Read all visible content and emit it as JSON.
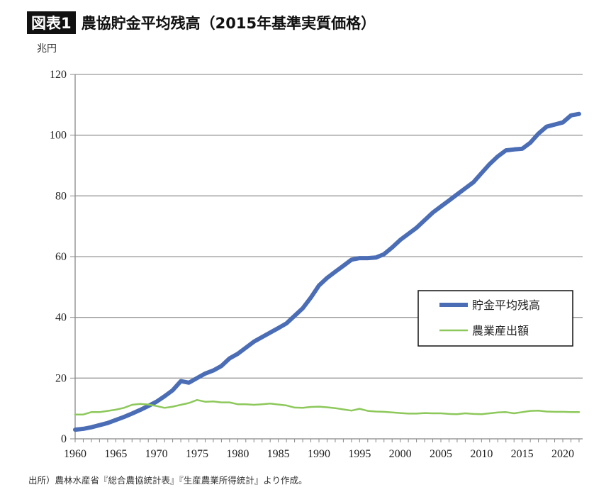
{
  "header": {
    "tag": "図表1",
    "title": "農協貯金平均残高（2015年基準実質価格）"
  },
  "source": "出所）農林水産省『総合農協統計表』『生産農業所得統計』より作成。",
  "chart_data": {
    "type": "line",
    "title": "農協貯金平均残高（2015年基準実質価格）",
    "ylabel": "兆円",
    "xlabel": "",
    "ylim": [
      0,
      120
    ],
    "yticks": [
      0,
      20,
      40,
      60,
      80,
      100,
      120
    ],
    "xlim": [
      1960,
      2022
    ],
    "xticks": [
      1960,
      1965,
      1970,
      1975,
      1980,
      1985,
      1990,
      1995,
      2000,
      2005,
      2010,
      2015,
      2020
    ],
    "grid": true,
    "legend": "right",
    "x_start": 1960,
    "series": [
      {
        "name": "貯金平均残高",
        "color": "#4a6db5",
        "values": [
          3,
          3.3,
          3.8,
          4.5,
          5.2,
          6.2,
          7.2,
          8.3,
          9.5,
          10.8,
          12.2,
          14,
          16,
          19,
          18.5,
          20,
          21.5,
          22.5,
          24,
          26.5,
          28,
          30,
          32,
          33.5,
          35,
          36.5,
          38,
          40.5,
          43,
          46.5,
          50.5,
          53,
          55,
          57,
          59,
          59.5,
          59.5,
          59.7,
          60.8,
          63,
          65.5,
          67.5,
          69.5,
          72,
          74.5,
          76.5,
          78.5,
          80.5,
          82.5,
          84.5,
          87.5,
          90.5,
          93,
          95,
          95.3,
          95.5,
          97.5,
          100.5,
          102.8,
          103.5,
          104.2,
          106.5,
          107
        ]
      },
      {
        "name": "農業産出額",
        "color": "#8cc85a",
        "values": [
          8,
          8,
          8.8,
          8.8,
          9.2,
          9.6,
          10.2,
          11.2,
          11.5,
          11.3,
          10.8,
          10.2,
          10.6,
          11.2,
          11.8,
          12.8,
          12.2,
          12.3,
          12,
          12,
          11.4,
          11.4,
          11.2,
          11.4,
          11.6,
          11.3,
          11,
          10.3,
          10.2,
          10.5,
          10.6,
          10.4,
          10.1,
          9.7,
          9.3,
          9.9,
          9.2,
          9,
          8.9,
          8.7,
          8.5,
          8.3,
          8.3,
          8.5,
          8.4,
          8.4,
          8.2,
          8.1,
          8.4,
          8.2,
          8.1,
          8.4,
          8.7,
          8.8,
          8.4,
          8.8,
          9.2,
          9.3,
          9,
          8.9,
          8.9,
          8.8,
          8.8
        ]
      }
    ]
  }
}
